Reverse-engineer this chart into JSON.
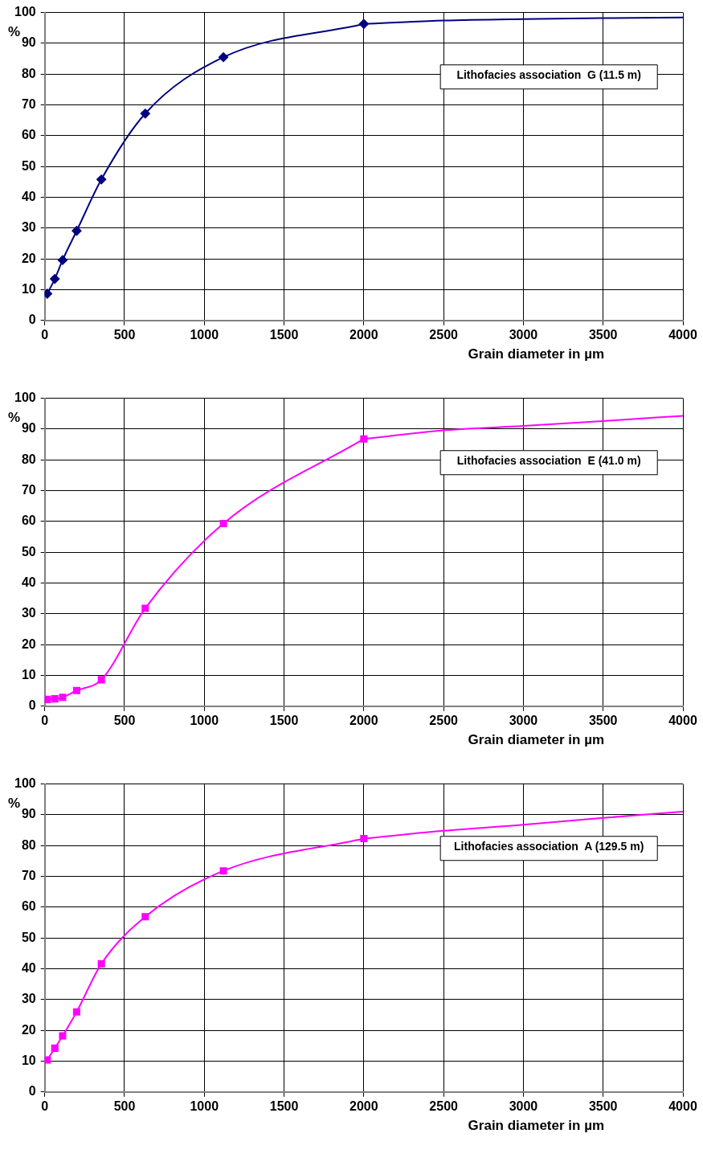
{
  "chart_data": [
    {
      "type": "line",
      "xlabel": "Grain diameter in µm",
      "ylabel": "%",
      "annotations": [
        "Lithofacies association  G (11.5 m)"
      ],
      "xlim": [
        0,
        4000
      ],
      "xticks": [
        0,
        500,
        1000,
        1500,
        2000,
        2500,
        3000,
        3500,
        4000
      ],
      "ylim": [
        0,
        100
      ],
      "yticks": [
        0,
        10,
        20,
        30,
        40,
        50,
        60,
        70,
        80,
        90,
        100
      ],
      "grid": true,
      "legend": false,
      "line_style": "solid",
      "series": [
        {
          "color": "#000080",
          "marker": "diamond",
          "x": [
            16,
            63,
            112,
            200,
            355,
            630,
            1120,
            2000
          ],
          "values": [
            8.7,
            13.5,
            19.6,
            29.1,
            45.8,
            67.2,
            85.5,
            96.3
          ]
        },
        {
          "color": "#000080",
          "marker": "none",
          "x": [
            2000,
            2500,
            3000,
            3500,
            4000
          ],
          "values": [
            96.3,
            97.4,
            97.9,
            98.2,
            98.4
          ]
        }
      ]
    },
    {
      "type": "line",
      "xlabel": "Grain diameter in µm",
      "ylabel": "%",
      "annotations": [
        "Lithofacies association  E (41.0 m)"
      ],
      "xlim": [
        0,
        4000
      ],
      "xticks": [
        0,
        500,
        1000,
        1500,
        2000,
        2500,
        3000,
        3500,
        4000
      ],
      "ylim": [
        0,
        100
      ],
      "yticks": [
        0,
        10,
        20,
        30,
        40,
        50,
        60,
        70,
        80,
        90,
        100
      ],
      "grid": true,
      "legend": false,
      "line_style": "solid",
      "series": [
        {
          "color": "#ff00ff",
          "marker": "square",
          "x": [
            16,
            63,
            112,
            200,
            355,
            630,
            1120,
            2000
          ],
          "values": [
            2.2,
            2.4,
            2.9,
            5.1,
            8.6,
            31.8,
            59.3,
            86.8
          ]
        },
        {
          "color": "#ff00ff",
          "marker": "none",
          "x": [
            2000,
            2500,
            3000,
            3500,
            4000
          ],
          "values": [
            86.8,
            89.6,
            91.0,
            92.6,
            94.3
          ]
        }
      ]
    },
    {
      "type": "line",
      "xlabel": "Grain diameter in µm",
      "ylabel": "%",
      "annotations": [
        "Lithofacies association  A (129.5 m)"
      ],
      "xlim": [
        0,
        4000
      ],
      "xticks": [
        0,
        500,
        1000,
        1500,
        2000,
        2500,
        3000,
        3500,
        4000
      ],
      "ylim": [
        0,
        100
      ],
      "yticks": [
        0,
        10,
        20,
        30,
        40,
        50,
        60,
        70,
        80,
        90,
        100
      ],
      "grid": true,
      "legend": false,
      "line_style": "solid",
      "series": [
        {
          "color": "#ff00ff",
          "marker": "square",
          "x": [
            16,
            63,
            112,
            200,
            355,
            630,
            1120,
            2000
          ],
          "values": [
            10.4,
            14.2,
            18.2,
            26.0,
            41.6,
            56.9,
            71.8,
            82.3
          ]
        },
        {
          "color": "#ff00ff",
          "marker": "none",
          "x": [
            2000,
            2500,
            3000,
            3500,
            4000
          ],
          "values": [
            82.3,
            84.8,
            86.8,
            89.0,
            91.0
          ]
        }
      ]
    }
  ]
}
